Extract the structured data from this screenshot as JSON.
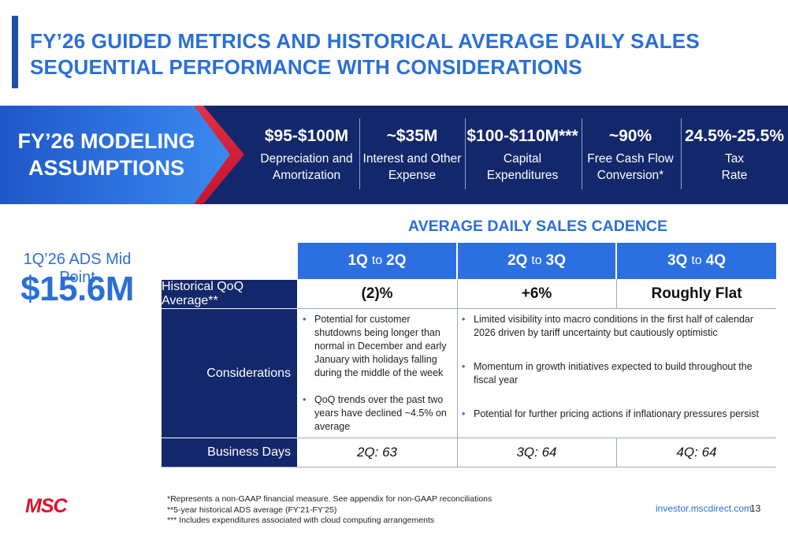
{
  "title": {
    "line1": "FY’26 GUIDED METRICS AND HISTORICAL AVERAGE DAILY SALES",
    "line2": "SEQUENTIAL PERFORMANCE WITH CONSIDERATIONS"
  },
  "assumptions": {
    "label_line1": "FY’26 MODELING",
    "label_line2": "ASSUMPTIONS",
    "metrics": [
      {
        "value": "$95-$100M",
        "label_line1": "Depreciation and",
        "label_line2": "Amortization"
      },
      {
        "value": "~$35M",
        "label_line1": "Interest and Other",
        "label_line2": "Expense"
      },
      {
        "value": "$100-$110M***",
        "label_line1": "Capital",
        "label_line2": "Expenditures"
      },
      {
        "value": "~90%",
        "label_line1": "Free Cash Flow",
        "label_line2": "Conversion*"
      },
      {
        "value": "24.5%-25.5%",
        "label_line1": "Tax",
        "label_line2": "Rate"
      }
    ]
  },
  "ads": {
    "label": "1Q’26 ADS Mid Point",
    "value": "$15.6M"
  },
  "cadence": {
    "title": "AVERAGE DAILY SALES CADENCE",
    "columns": [
      {
        "from": "1Q",
        "to_word": "to",
        "to": "2Q"
      },
      {
        "from": "2Q",
        "to_word": "to",
        "to": "3Q"
      },
      {
        "from": "3Q",
        "to_word": "to",
        "to": "4Q"
      }
    ],
    "historical_label": "Historical QoQ Average**",
    "historical_values": [
      "(2)%",
      "+6%",
      "Roughly Flat"
    ],
    "considerations_label": "Considerations",
    "considerations_col1": [
      "Potential for customer shutdowns being longer than normal in December and early January with holidays falling during the middle of the week",
      "QoQ trends over the past two years have declined ~4.5% on average"
    ],
    "considerations_col2": [
      "Limited visibility into macro conditions in the first half of calendar 2026 driven by tariff uncertainty but cautiously optimistic",
      "Momentum in growth initiatives expected to build throughout the fiscal year",
      "Potential for further pricing actions if inflationary pressures persist"
    ],
    "business_days_label": "Business Days",
    "business_days": [
      "2Q: 63",
      "3Q: 64",
      "4Q: 64"
    ]
  },
  "footnotes": [
    "*Represents a non-GAAP financial measure. See appendix for non-GAAP reconciliations",
    "**5-year historical ADS average (FY’21-FY’25)",
    "*** Includes expenditures associated with cloud computing arrangements"
  ],
  "footer": {
    "logo": "MSC",
    "website": "investor.mscdirect.com",
    "page_number": "13"
  },
  "colors": {
    "accent_blue": "#2a6fd6",
    "navy": "#13286b",
    "header_blue": "#2c6fe0",
    "brand_red": "#e0102b"
  }
}
